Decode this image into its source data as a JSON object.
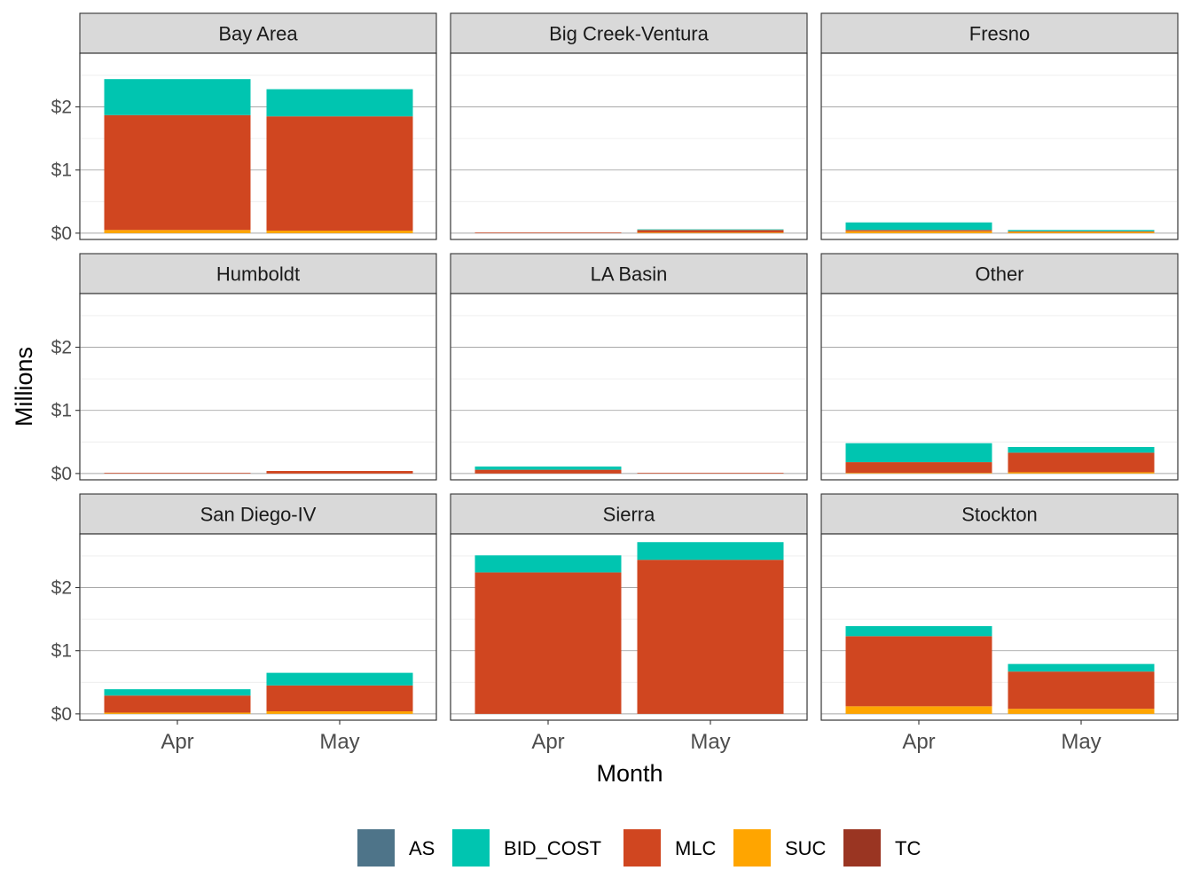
{
  "chart_data": {
    "type": "bar",
    "stacked": true,
    "faceted": true,
    "xlabel": "Month",
    "ylabel": "Millions",
    "categories": [
      "Apr",
      "May"
    ],
    "ylim": [
      -0.1,
      2.85
    ],
    "yticks": [
      0,
      1,
      2
    ],
    "ytick_labels": [
      "$0",
      "$1",
      "$2"
    ],
    "grid": true,
    "legend_position": "bottom",
    "series_names": [
      "AS",
      "BID_COST",
      "MLC",
      "SUC",
      "TC"
    ],
    "colors": {
      "AS": "#4e7489",
      "BID_COST": "#00c5b0",
      "MLC": "#d04620",
      "SUC": "#ffa500",
      "TC": "#9a3522"
    },
    "stack_order": [
      "SUC",
      "TC",
      "MLC",
      "BID_COST",
      "AS"
    ],
    "facets": [
      {
        "name": "Bay Area",
        "values": {
          "Apr": {
            "AS": 0,
            "BID_COST": 0.57,
            "MLC": 1.82,
            "SUC": 0.05,
            "TC": 0
          },
          "May": {
            "AS": 0,
            "BID_COST": 0.43,
            "MLC": 1.81,
            "SUC": 0.04,
            "TC": 0
          }
        }
      },
      {
        "name": "Big Creek-Ventura",
        "values": {
          "Apr": {
            "AS": 0,
            "BID_COST": 0,
            "MLC": 0.01,
            "SUC": 0,
            "TC": 0
          },
          "May": {
            "AS": 0,
            "BID_COST": 0.01,
            "MLC": 0.04,
            "SUC": 0.01,
            "TC": 0
          }
        }
      },
      {
        "name": "Fresno",
        "values": {
          "Apr": {
            "AS": 0,
            "BID_COST": 0.12,
            "MLC": 0.02,
            "SUC": 0.03,
            "TC": 0
          },
          "May": {
            "AS": 0,
            "BID_COST": 0.02,
            "MLC": 0.01,
            "SUC": 0.02,
            "TC": 0
          }
        }
      },
      {
        "name": "Humboldt",
        "values": {
          "Apr": {
            "AS": 0,
            "BID_COST": 0,
            "MLC": 0.01,
            "SUC": 0,
            "TC": 0
          },
          "May": {
            "AS": 0,
            "BID_COST": 0,
            "MLC": 0.04,
            "SUC": 0,
            "TC": 0
          }
        }
      },
      {
        "name": "LA Basin",
        "values": {
          "Apr": {
            "AS": 0,
            "BID_COST": 0.05,
            "MLC": 0.06,
            "SUC": 0,
            "TC": 0
          },
          "May": {
            "AS": 0,
            "BID_COST": 0,
            "MLC": 0.01,
            "SUC": 0,
            "TC": 0
          }
        }
      },
      {
        "name": "Other",
        "values": {
          "Apr": {
            "AS": 0,
            "BID_COST": 0.3,
            "MLC": 0.17,
            "SUC": 0.01,
            "TC": 0
          },
          "May": {
            "AS": 0,
            "BID_COST": 0.09,
            "MLC": 0.31,
            "SUC": 0.02,
            "TC": 0
          }
        }
      },
      {
        "name": "San Diego-IV",
        "values": {
          "Apr": {
            "AS": 0,
            "BID_COST": 0.1,
            "MLC": 0.27,
            "SUC": 0.02,
            "TC": 0
          },
          "May": {
            "AS": 0,
            "BID_COST": 0.2,
            "MLC": 0.41,
            "SUC": 0.04,
            "TC": 0
          }
        }
      },
      {
        "name": "Sierra",
        "values": {
          "Apr": {
            "AS": 0,
            "BID_COST": 0.27,
            "MLC": 2.24,
            "SUC": 0,
            "TC": 0
          },
          "May": {
            "AS": 0,
            "BID_COST": 0.28,
            "MLC": 2.44,
            "SUC": 0,
            "TC": 0
          }
        }
      },
      {
        "name": "Stockton",
        "values": {
          "Apr": {
            "AS": 0,
            "BID_COST": 0.16,
            "MLC": 1.11,
            "SUC": 0.12,
            "TC": 0
          },
          "May": {
            "AS": 0,
            "BID_COST": 0.12,
            "MLC": 0.59,
            "SUC": 0.08,
            "TC": 0
          }
        }
      }
    ]
  }
}
